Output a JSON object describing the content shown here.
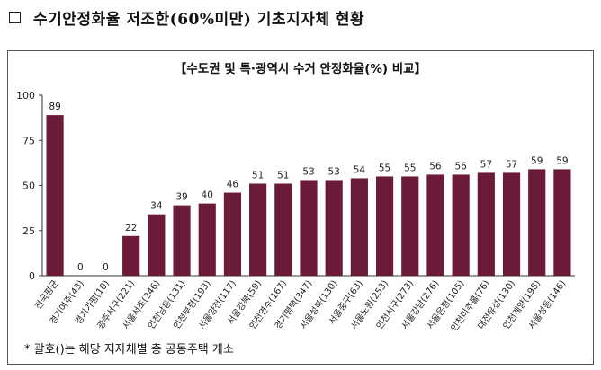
{
  "heading": {
    "checkbox_icon": "empty-square-icon",
    "text": "수기안정화율 저조한(60%미만) 기초지자체 현황"
  },
  "chart_data": {
    "type": "bar",
    "title": "【수도권 및 특·광역시 수거 안정화율(%) 비교】",
    "categories": [
      "전국평균",
      "경기여주(43)",
      "경기가평(10)",
      "광주서구(221)",
      "서울서초(246)",
      "인천남동(131)",
      "인천부평(193)",
      "서울양천(117)",
      "서울강북(59)",
      "인천연수(167)",
      "경기평택(347)",
      "서울성북(130)",
      "서울중구(63)",
      "서울노원(253)",
      "인천서구(273)",
      "서울강남(276)",
      "서울은평(105)",
      "인천미추홀(76)",
      "대전유성(130)",
      "인천계양(198)",
      "서울성동(146)"
    ],
    "values": [
      89,
      0,
      0,
      22,
      34,
      39,
      40,
      46,
      51,
      51,
      53,
      53,
      54,
      55,
      55,
      56,
      56,
      57,
      57,
      59,
      59
    ],
    "yticks": [
      0,
      25,
      50,
      75,
      100
    ],
    "ylim": [
      0,
      100
    ],
    "bar_color": "#6B1A3A",
    "grid": false
  },
  "note": "* 괄호()는 해당 지자체별 총 공동주택 개소"
}
